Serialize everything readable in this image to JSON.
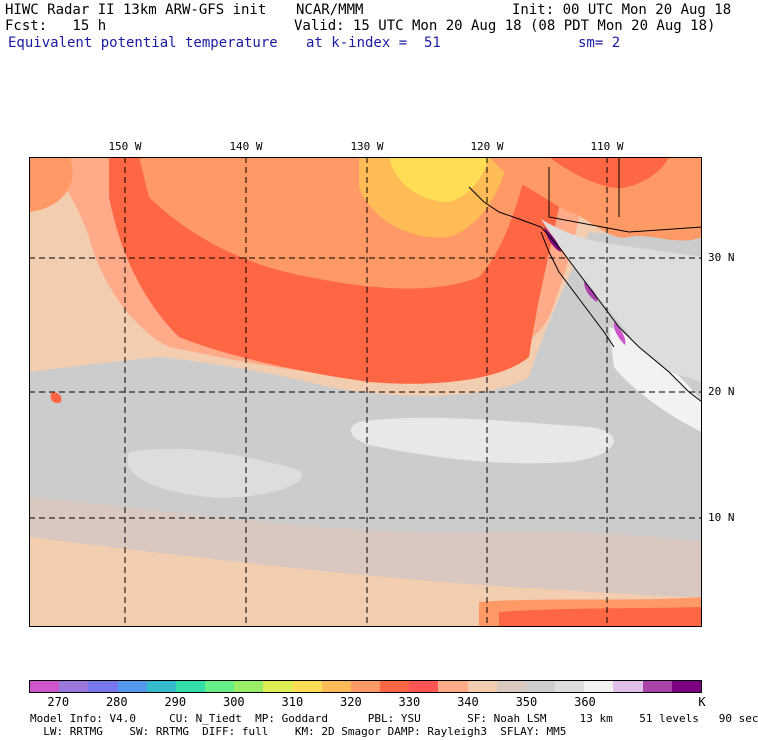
{
  "header": {
    "line1_left": "HIWC Radar II 13km ARW-GFS init",
    "line1_mid": "NCAR/MMM",
    "line1_right": "Init: 00 UTC Mon 20 Aug 18",
    "line2_left": "Fcst:   15 h",
    "line2_right": "Valid: 15 UTC Mon 20 Aug 18 (08 PDT Mon 20 Aug 18)",
    "line3_left": "Equivalent potential temperature",
    "line3_mid": "at k-index =  51",
    "line3_right": "sm= 2"
  },
  "map": {
    "lon_labels": [
      "150 W",
      "140 W",
      "130 W",
      "120 W",
      "110 W"
    ],
    "lat_labels": [
      "30 N",
      "20 N",
      "10 N"
    ]
  },
  "colorbar": {
    "colors": [
      "#cc55cc",
      "#9a77dd",
      "#7777ee",
      "#5599ee",
      "#33bbcc",
      "#33ddaa",
      "#66ee88",
      "#99ee66",
      "#ddee55",
      "#ffdd55",
      "#ffbb55",
      "#ff9966",
      "#ff6644",
      "#ff5555",
      "#ffaa88",
      "#f2cdb0",
      "#d8c8c0",
      "#cccccc",
      "#dddddd",
      "#f2f2f2",
      "#e0c0e8",
      "#aa44aa",
      "#7a0080"
    ],
    "labels": [
      "270",
      "280",
      "290",
      "300",
      "310",
      "320",
      "330",
      "340",
      "350",
      "360",
      "K"
    ]
  },
  "footer": {
    "line1": "Model Info: V4.0     CU: N_Tiedt  MP: Goddard      PBL: YSU       SF: Noah LSM     13 km    51 levels   90 sec",
    "line2": "  LW: RRTMG    SW: RRTMG  DIFF: full    KM: 2D Smagor DAMP: Rayleigh3  SFLAY: MM5"
  }
}
